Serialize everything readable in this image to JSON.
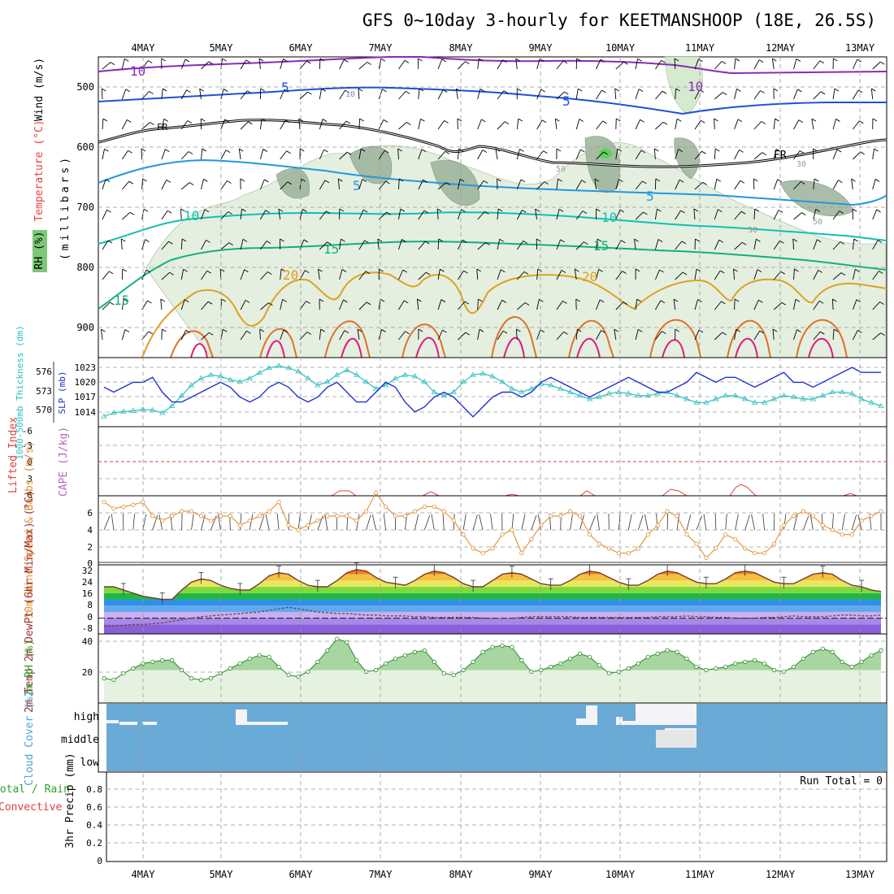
{
  "title": "GFS 0~10day 3-hourly for KEETMANSHOOP (18E, 26.5S)",
  "date_labels": [
    "4MAY",
    "5MAY",
    "6MAY",
    "7MAY",
    "8MAY",
    "9MAY",
    "10MAY",
    "11MAY",
    "12MAY",
    "13MAY"
  ],
  "colors": {
    "temp_line": "#d98a1e",
    "dewpoint_line": "#7a4fb0",
    "rh_fill": "#a8d6a0",
    "cloud_fill": "#6aaad6",
    "slp_line": "#2030d0",
    "thickness_line": "#30c0c0",
    "wind_line": "#e09030"
  },
  "panels": {
    "upper": {
      "y_label": "(millibars)",
      "legend": {
        "wind": "Wind (m/s)",
        "temp": "Temperature (°C)",
        "rh": "RH (%)"
      },
      "ticks": [
        "500",
        "600",
        "700",
        "800",
        "900"
      ],
      "contour_labels": [
        "10",
        "5",
        "FR",
        "5",
        "10",
        "15",
        "15",
        "20",
        "20",
        "10",
        "5",
        "5",
        "10",
        "15",
        "20",
        "FR",
        "10",
        "50",
        "30",
        "50",
        "30"
      ]
    },
    "thickness_slp": {
      "label_thickness": "1000-500mb Thickness (dm)",
      "label_slp": "SLP (mb)",
      "thickness_ticks": [
        "576",
        "573",
        "570"
      ],
      "slp_ticks": [
        "1023",
        "1020",
        "1017",
        "1014"
      ]
    },
    "lifted": {
      "label_li": "Lifted Index",
      "label_cape": "CAPE (J/kg)",
      "ticks": [
        "-6",
        "-3",
        "0",
        "3",
        "6"
      ]
    },
    "wind10": {
      "label": "10m Wind Speed & Barbs (m/s)",
      "ticks": [
        "6",
        "4",
        "2",
        "0"
      ]
    },
    "temp2m": {
      "label": "2m Temp 2m DewPt (6hr Min/Max) (°C)",
      "ticks": [
        "32",
        "24",
        "16",
        "8",
        "0",
        "-8"
      ]
    },
    "rh2m": {
      "label": "2m RH (%)",
      "ticks": [
        "40",
        "20"
      ]
    },
    "cloud": {
      "label": "Cloud Cover (%)",
      "levels": [
        "high",
        "middle",
        "low"
      ]
    },
    "precip": {
      "label_left": "Total / Rain",
      "label_conv": "Convective",
      "label_axis": "3hr Precip (mm)",
      "run_total": "Run Total = 0",
      "ticks": [
        "0.8",
        "0.6",
        "0.4",
        "0.2",
        "0"
      ]
    }
  },
  "chart_data": [
    {
      "type": "line",
      "name": "SLP",
      "unit": "mb",
      "ylim": [
        1011,
        1025
      ],
      "values": [
        1019,
        1018,
        1019,
        1020,
        1020,
        1021,
        1018,
        1016,
        1016,
        1017,
        1018,
        1019,
        1020,
        1019,
        1017,
        1016,
        1017,
        1019,
        1020,
        1019,
        1017,
        1016,
        1017,
        1019,
        1020,
        1018,
        1016,
        1016,
        1018,
        1020,
        1019,
        1016,
        1014,
        1015,
        1017,
        1018,
        1017,
        1015,
        1013,
        1015,
        1017,
        1018,
        1018,
        1017,
        1018,
        1020,
        1021,
        1020,
        1019,
        1018,
        1017,
        1018,
        1019,
        1020,
        1021,
        1020,
        1019,
        1018,
        1018,
        1019,
        1020,
        1022,
        1021,
        1020,
        1021,
        1021,
        1020,
        1019,
        1020,
        1021,
        1022,
        1020,
        1020,
        1019,
        1020,
        1021,
        1022,
        1023,
        1022,
        1022,
        1022
      ]
    },
    {
      "type": "line",
      "name": "1000-500mb Thickness",
      "unit": "dm",
      "ylim": [
        568,
        578
      ],
      "values": [
        569.5,
        570,
        570.2,
        570.3,
        570.5,
        570.4,
        570,
        571,
        572.5,
        574,
        575,
        575.5,
        575.3,
        574.8,
        574.5,
        575,
        575.8,
        576.5,
        576.8,
        576.5,
        576,
        575,
        574,
        574.5,
        575.5,
        576.2,
        575.5,
        574.5,
        573.5,
        574,
        575,
        575.5,
        575.3,
        574.5,
        573,
        572.5,
        573,
        574.5,
        575.5,
        575.7,
        575.3,
        574.5,
        573.5,
        573,
        573.5,
        574.2,
        574,
        573.5,
        573,
        572.5,
        572,
        572.3,
        572.8,
        573,
        572.8,
        572.5,
        572.5,
        572.8,
        573,
        572.5,
        572,
        571.5,
        571.5,
        572,
        572.5,
        572.5,
        572,
        571.5,
        571.5,
        572,
        572.5,
        572.3,
        572,
        572,
        572.5,
        573,
        573,
        572.8,
        572,
        571.5,
        571
      ]
    },
    {
      "type": "line",
      "name": "10m Wind Speed",
      "unit": "m/s",
      "ylim": [
        0,
        7
      ],
      "values": [
        6.5,
        5.8,
        6,
        6.2,
        6.5,
        5,
        4.5,
        5,
        5.5,
        5.5,
        5,
        4.5,
        5,
        5,
        4,
        4.5,
        5,
        5.5,
        6.5,
        4,
        3.5,
        4,
        4.5,
        5,
        5,
        5,
        4.5,
        5.5,
        7.5,
        6,
        5,
        5,
        5.5,
        6,
        6,
        5.5,
        4.5,
        3,
        1.5,
        1,
        1.5,
        3,
        3.5,
        1,
        2.5,
        4,
        5,
        5,
        5.5,
        5,
        3,
        2,
        1.5,
        1,
        1,
        1.5,
        3,
        4,
        5.5,
        5,
        3,
        2,
        0.5,
        1.5,
        3,
        2.5,
        1.5,
        1,
        1,
        2,
        4,
        5,
        5.5,
        5,
        4,
        3.5,
        3,
        3,
        4.5,
        5,
        5.5
      ]
    },
    {
      "type": "area",
      "name": "2m Temp",
      "unit": "°C",
      "ylim": [
        -10,
        34
      ],
      "values": [
        20,
        20,
        18,
        16,
        14,
        13,
        12,
        12,
        18,
        23,
        25,
        24,
        21,
        19,
        18,
        18,
        22,
        27,
        29,
        28,
        24,
        21,
        20,
        20,
        24,
        29,
        31,
        30,
        26,
        23,
        22,
        21,
        24,
        28,
        30,
        29,
        26,
        22,
        20,
        20,
        24,
        28,
        29,
        28,
        25,
        22,
        21,
        21,
        24,
        28,
        30,
        29,
        26,
        23,
        21,
        21,
        24,
        28,
        30,
        29,
        26,
        23,
        22,
        22,
        25,
        29,
        30,
        29,
        26,
        23,
        22,
        22,
        25,
        28,
        29,
        28,
        24,
        21,
        20,
        18,
        17
      ]
    },
    {
      "type": "line",
      "name": "2m DewPt",
      "unit": "°C",
      "ylim": [
        -10,
        34
      ],
      "values": [
        -5,
        -5,
        -4.5,
        -4,
        -4,
        -3.5,
        -3,
        -2,
        -1,
        0,
        1,
        1.5,
        2,
        2.5,
        3,
        3.5,
        4,
        5,
        6,
        7,
        6,
        5,
        4,
        3.5,
        3,
        3,
        2.5,
        2,
        2,
        1.5,
        1.5,
        1.5,
        1,
        1,
        0.5,
        0.5,
        0.5,
        0.5,
        0.5,
        0,
        0,
        0,
        0,
        0.5,
        1,
        1,
        1,
        1,
        1,
        0.5,
        0.5,
        0.5,
        0.5,
        0.5,
        0.5,
        0.5,
        0.5,
        1,
        1,
        1,
        1.5,
        1,
        1,
        0.5,
        0.5,
        0,
        0,
        0,
        0.5,
        0.5,
        1,
        1.5,
        1,
        1,
        1,
        1.5,
        2,
        2,
        1.5,
        1.5,
        2
      ]
    },
    {
      "type": "area",
      "name": "2m RH",
      "unit": "%",
      "ylim": [
        0,
        42
      ],
      "values": [
        15,
        14,
        18,
        21,
        24,
        25,
        26,
        26,
        20,
        15,
        14,
        15,
        18,
        21,
        24,
        27,
        29,
        28,
        22,
        17,
        16,
        19,
        25,
        32,
        39,
        37,
        26,
        19,
        20,
        24,
        27,
        29,
        31,
        32,
        25,
        18,
        17,
        20,
        25,
        31,
        34,
        35,
        34,
        26,
        19,
        20,
        22,
        24,
        27,
        30,
        28,
        23,
        18,
        19,
        21,
        24,
        28,
        30,
        32,
        31,
        27,
        22,
        20,
        21,
        22,
        24,
        25,
        26,
        24,
        20,
        19,
        22,
        27,
        31,
        33,
        31,
        25,
        22,
        25,
        29,
        32
      ]
    }
  ]
}
